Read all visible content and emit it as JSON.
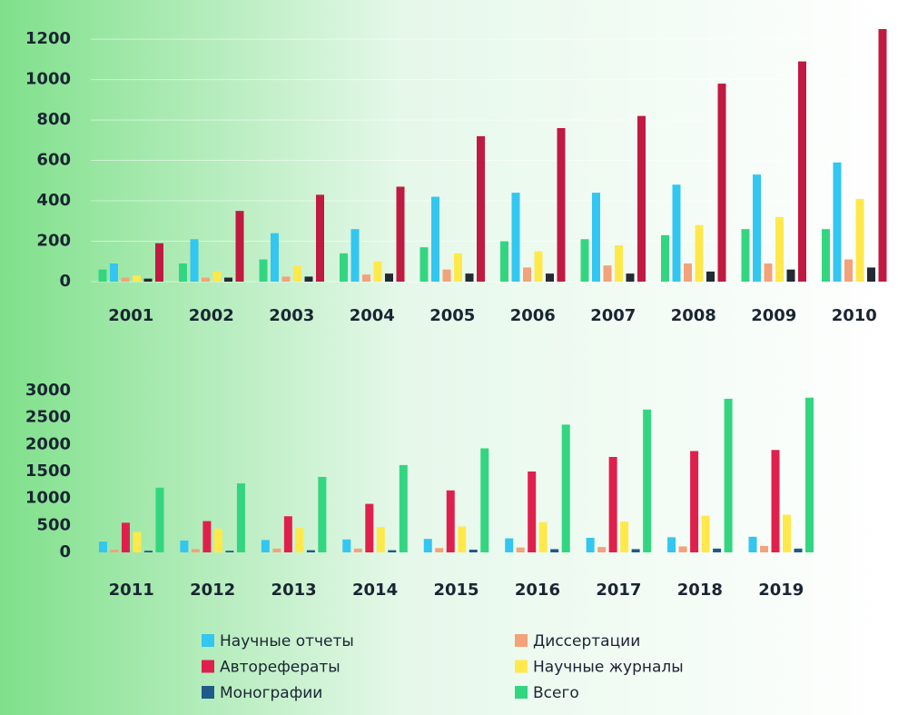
{
  "chart_data": [
    {
      "type": "bar",
      "categories": [
        "2001",
        "2002",
        "2003",
        "2004",
        "2005",
        "2006",
        "2007",
        "2008",
        "2009",
        "2010"
      ],
      "ylim": [
        0,
        1250
      ],
      "yticks": [
        0,
        200,
        400,
        600,
        800,
        1000,
        1200
      ],
      "grid": true,
      "series": [
        {
          "name": "Всего",
          "color": "#33d680",
          "values": [
            60,
            90,
            110,
            140,
            170,
            200,
            210,
            230,
            260,
            260
          ]
        },
        {
          "name": "Научные отчеты",
          "color": "#33c6f0",
          "values": [
            90,
            210,
            240,
            260,
            420,
            440,
            440,
            480,
            530,
            590
          ]
        },
        {
          "name": "Диссертации",
          "color": "#f4a27a",
          "values": [
            20,
            20,
            25,
            35,
            60,
            70,
            80,
            90,
            90,
            110
          ]
        },
        {
          "name": "Научные журналы",
          "color": "#ffe94a",
          "values": [
            30,
            50,
            80,
            100,
            140,
            150,
            180,
            280,
            320,
            410
          ]
        },
        {
          "name": "Монографии",
          "color": "#222a33",
          "values": [
            15,
            20,
            25,
            40,
            40,
            40,
            40,
            50,
            60,
            70
          ]
        },
        {
          "name": "Авторефераты",
          "color": "#c01a40",
          "values": [
            190,
            350,
            430,
            470,
            720,
            760,
            820,
            980,
            1090,
            1250
          ]
        }
      ]
    },
    {
      "type": "bar",
      "categories": [
        "2011",
        "2012",
        "2013",
        "2014",
        "2015",
        "2016",
        "2017",
        "2018",
        "2019"
      ],
      "ylim": [
        0,
        3000
      ],
      "yticks": [
        0,
        500,
        1000,
        1500,
        2000,
        2500,
        3000
      ],
      "grid": false,
      "series": [
        {
          "name": "Научные отчеты",
          "color": "#33c6f0",
          "values": [
            200,
            220,
            230,
            240,
            250,
            260,
            270,
            280,
            290
          ]
        },
        {
          "name": "Диссертации",
          "color": "#f4a27a",
          "values": [
            50,
            60,
            70,
            70,
            80,
            90,
            100,
            110,
            120
          ]
        },
        {
          "name": "Авторефераты",
          "color": "#e0204c",
          "values": [
            550,
            580,
            670,
            900,
            1150,
            1500,
            1770,
            1880,
            1900
          ]
        },
        {
          "name": "Научные журналы",
          "color": "#ffe94a",
          "values": [
            380,
            440,
            450,
            470,
            480,
            560,
            570,
            680,
            700
          ]
        },
        {
          "name": "Монографии",
          "color": "#1e5a8a",
          "values": [
            30,
            30,
            40,
            40,
            50,
            60,
            60,
            70,
            70
          ]
        },
        {
          "name": "Всего",
          "color": "#33d680",
          "values": [
            1200,
            1280,
            1400,
            1620,
            1930,
            2370,
            2650,
            2850,
            2870
          ]
        }
      ]
    }
  ]
}
